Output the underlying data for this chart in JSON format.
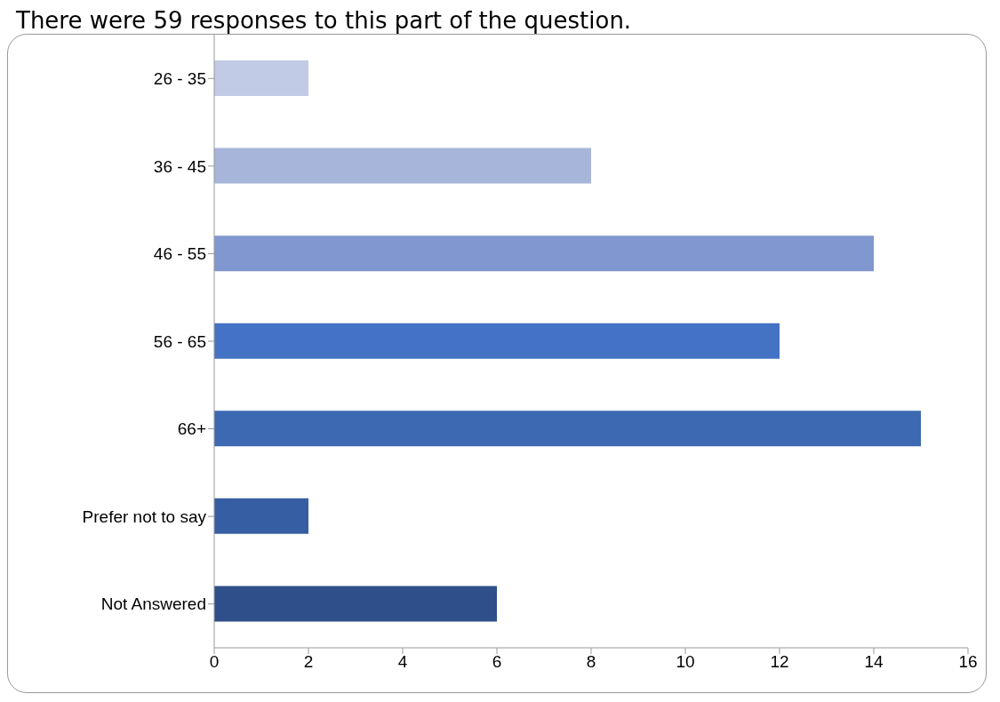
{
  "chart_data": {
    "type": "bar",
    "orientation": "horizontal",
    "title": "There were 59 responses to this part of the question.",
    "categories": [
      "26 - 35",
      "36 - 45",
      "46 - 55",
      "56 - 65",
      "66+",
      "Prefer not to say",
      "Not Answered"
    ],
    "values": [
      2,
      8,
      14,
      12,
      15,
      2,
      6
    ],
    "colors": [
      "#c2cbe6",
      "#a7b5da",
      "#8098cf",
      "#4472c4",
      "#3c69b2",
      "#365fa3",
      "#2e4f89"
    ],
    "xlim": [
      0,
      16
    ],
    "xticks": [
      0,
      2,
      4,
      6,
      8,
      10,
      12,
      14,
      16
    ],
    "grid": false,
    "legend": false
  }
}
